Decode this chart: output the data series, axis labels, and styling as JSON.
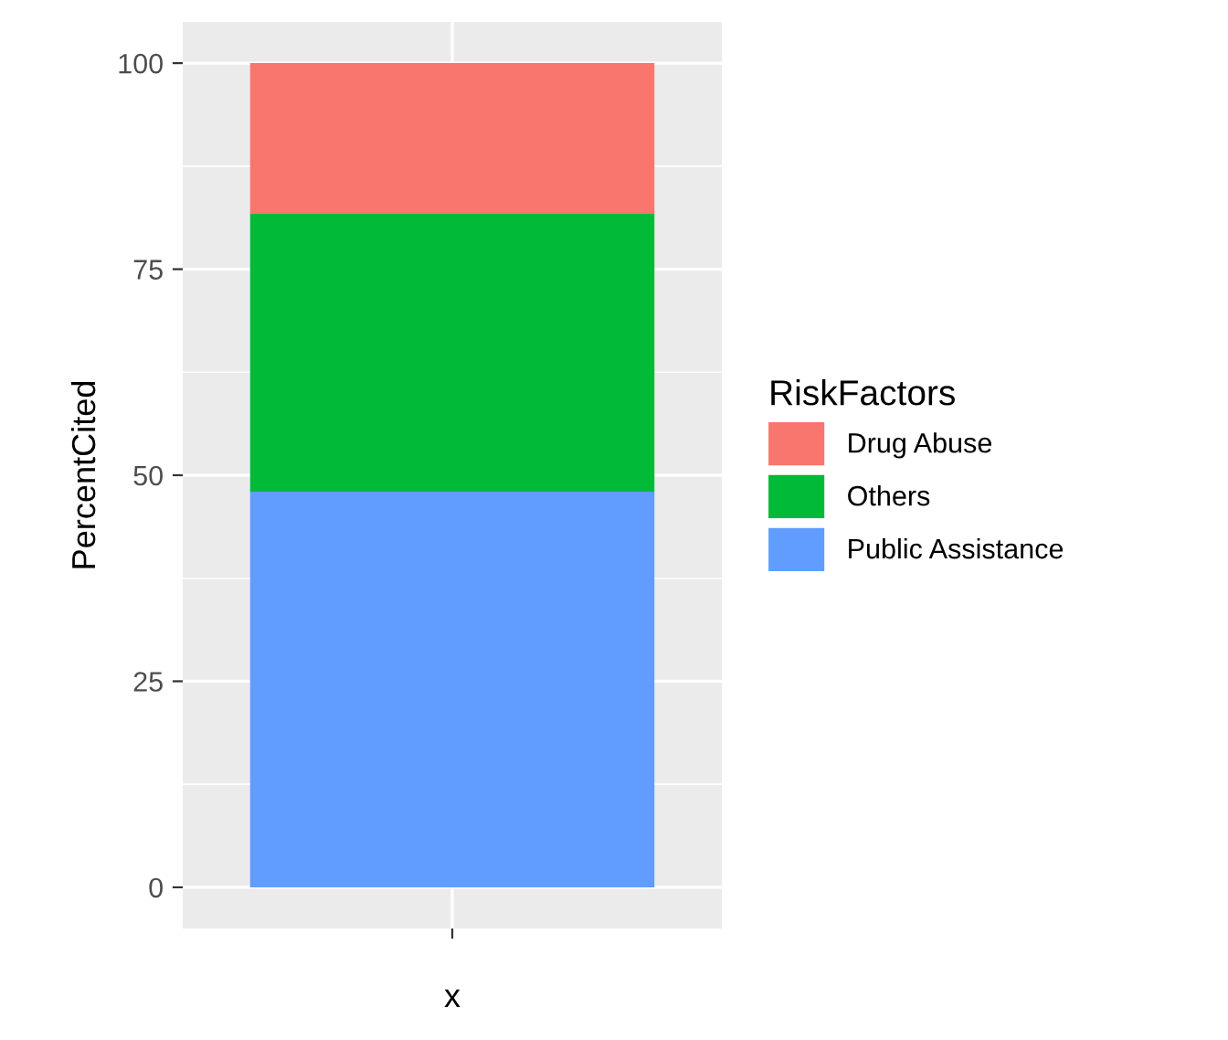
{
  "chart_data": {
    "type": "bar",
    "stacked": true,
    "xlabel": "x",
    "ylabel": "PercentCited",
    "legend_title": "RiskFactors",
    "legend": "right",
    "grid": true,
    "categories": [
      null
    ],
    "series": [
      {
        "name": "Public Assistance",
        "color": "#619cff",
        "values": [
          48.0
        ]
      },
      {
        "name": "Others",
        "color": "#00ba38",
        "values": [
          33.7
        ]
      },
      {
        "name": "Drug Abuse",
        "color": "#f8766d",
        "values": [
          18.3
        ]
      }
    ],
    "ylim": [
      -5,
      105
    ],
    "yticks": [
      0,
      25,
      50,
      75,
      100
    ]
  }
}
